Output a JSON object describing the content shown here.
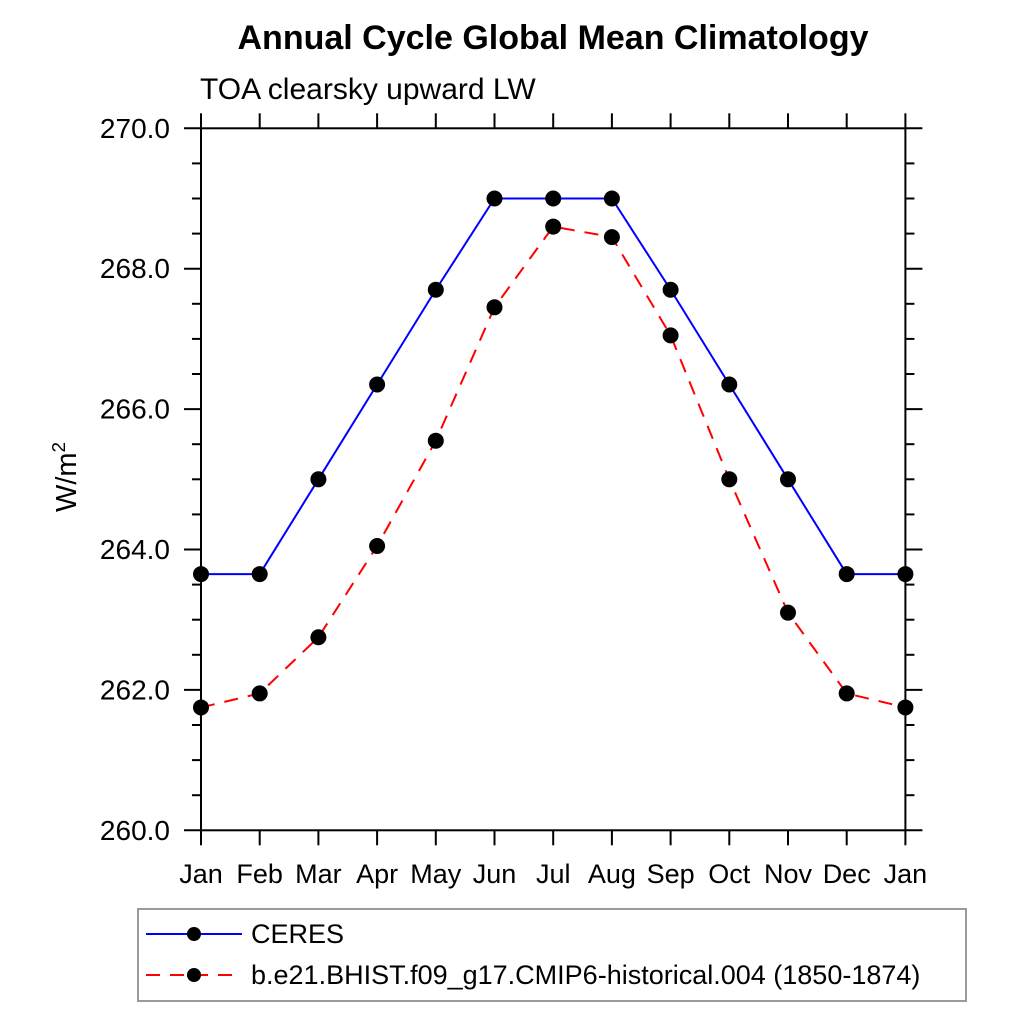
{
  "header": {
    "title": "Annual Cycle Global Mean Climatology",
    "subtitle": "TOA clearsky upward LW"
  },
  "y_axis": {
    "label": "W/m²",
    "label_base": "W/m",
    "label_exponent": "2"
  },
  "chart_data": {
    "type": "line",
    "title": "Annual Cycle Global Mean Climatology",
    "subtitle": "TOA clearsky upward LW",
    "xlabel": "",
    "ylabel": "W/m²",
    "categories": [
      "Jan",
      "Feb",
      "Mar",
      "Apr",
      "May",
      "Jun",
      "Jul",
      "Aug",
      "Sep",
      "Oct",
      "Nov",
      "Dec",
      "Jan"
    ],
    "series": [
      {
        "name": "CERES",
        "line_color": "#0000ff",
        "line_style": "solid",
        "marker": "filled-circle",
        "marker_color": "#000000",
        "values": [
          263.65,
          263.65,
          265.0,
          266.35,
          267.7,
          269.0,
          269.0,
          269.0,
          267.7,
          266.35,
          265.0,
          263.65,
          263.65
        ]
      },
      {
        "name": "b.e21.BHIST.f09_g17.CMIP6-historical.004 (1850-1874)",
        "line_color": "#ff0000",
        "line_style": "dashed",
        "marker": "filled-circle",
        "marker_color": "#000000",
        "values": [
          261.75,
          261.95,
          262.75,
          264.05,
          265.55,
          267.45,
          268.6,
          268.45,
          267.05,
          265.0,
          263.1,
          261.95,
          261.75
        ]
      }
    ],
    "ylim": [
      260.0,
      270.0
    ],
    "ytick_values": [
      260.0,
      262.0,
      264.0,
      266.0,
      268.0,
      270.0
    ],
    "ytick_labels": [
      "260.0",
      "262.0",
      "264.0",
      "266.0",
      "268.0",
      "270.0"
    ],
    "ytick_minor_step": 0.5,
    "grid": false,
    "legend_position": "bottom-left"
  }
}
